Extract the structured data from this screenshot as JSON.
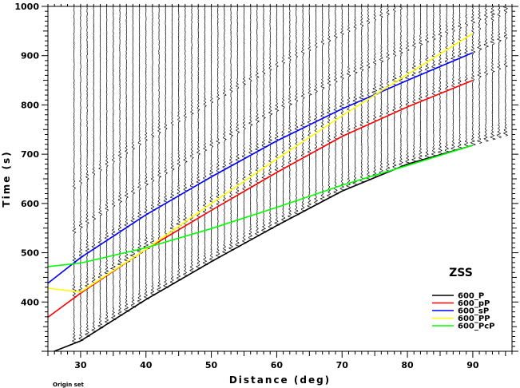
{
  "chart_data": {
    "type": "line",
    "title": "",
    "xlabel": "Distance (deg)",
    "ylabel": "Time (s)",
    "xlim": [
      25,
      96
    ],
    "ylim": [
      300,
      1000
    ],
    "x_ticks": [
      30,
      40,
      50,
      60,
      70,
      80,
      90
    ],
    "y_ticks": [
      400,
      500,
      600,
      700,
      800,
      900,
      1000
    ],
    "station_label": "ZSS",
    "footnote": "Origin set",
    "legend_position": "bottom-right",
    "series": [
      {
        "name": "600_P",
        "color": "#000000",
        "x": [
          25,
          30,
          40,
          50,
          60,
          70,
          80,
          90
        ],
        "y": [
          295,
          321,
          405,
          482,
          555,
          625,
          680,
          718
        ]
      },
      {
        "name": "600_pP",
        "color": "#ff0000",
        "x": [
          25,
          30,
          40,
          50,
          60,
          70,
          80,
          90
        ],
        "y": [
          369,
          418,
          507,
          586,
          663,
          736,
          796,
          850
        ]
      },
      {
        "name": "600_sP",
        "color": "#0000ff",
        "x": [
          25,
          30,
          40,
          50,
          60,
          70,
          80,
          90
        ],
        "y": [
          438,
          490,
          577,
          654,
          727,
          792,
          850,
          906
        ]
      },
      {
        "name": "600_PP",
        "color": "#ffff00",
        "x": [
          25,
          30,
          40,
          50,
          60,
          70,
          80,
          90
        ],
        "y": [
          428,
          420,
          507,
          600,
          690,
          778,
          862,
          945
        ]
      },
      {
        "name": "600_PcP",
        "color": "#00ff00",
        "x": [
          25,
          30,
          40,
          50,
          60,
          70,
          80,
          90
        ],
        "y": [
          472,
          479,
          510,
          549,
          592,
          637,
          677,
          718
        ]
      }
    ],
    "traces": {
      "distance_start": 29,
      "distance_step": 1,
      "count": 67,
      "time_start": 300,
      "time_end": 1000
    }
  }
}
